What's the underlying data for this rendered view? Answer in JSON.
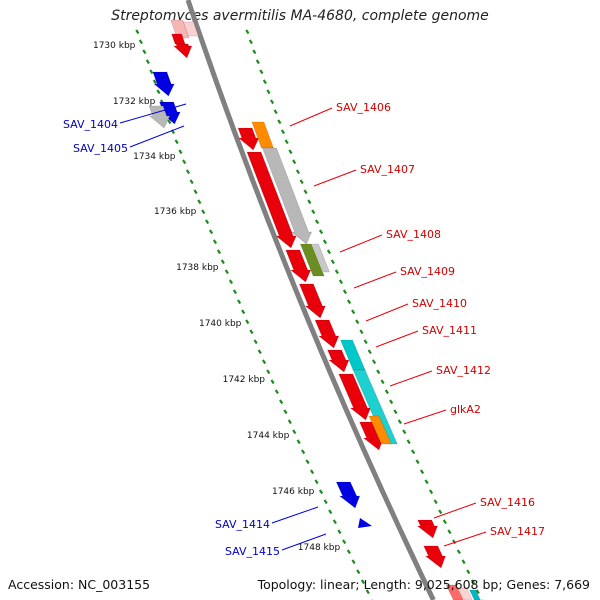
{
  "title": "Streptomyces avermitilis MA-4680, complete genome",
  "footer": {
    "accession": "Accession: NC_003155",
    "summary": "Topology: linear; Length: 9,025,608 bp; Genes: 7,669"
  },
  "colors": {
    "forward": "#e8000b",
    "reverse": "#0000e0",
    "grey": "#b8b8b8",
    "orange": "#ff8c00",
    "olive": "#6b8e23",
    "cyan": "#00c8c8",
    "dots": "#1f8a1f",
    "backbone": "#808080"
  },
  "ticks": [
    {
      "label": "1730 kbp",
      "kbp": 1730
    },
    {
      "label": "1732 kbp",
      "kbp": 1732
    },
    {
      "label": "1734 kbp",
      "kbp": 1734
    },
    {
      "label": "1736 kbp",
      "kbp": 1736
    },
    {
      "label": "1738 kbp",
      "kbp": 1738
    },
    {
      "label": "1740 kbp",
      "kbp": 1740
    },
    {
      "label": "1742 kbp",
      "kbp": 1742
    },
    {
      "label": "1744 kbp",
      "kbp": 1744
    },
    {
      "label": "1746 kbp",
      "kbp": 1746
    },
    {
      "label": "1748 kbp",
      "kbp": 1748
    }
  ],
  "genes_forward": [
    {
      "label": "SAV_1406",
      "color": "red"
    },
    {
      "label": "SAV_1407",
      "color": "red"
    },
    {
      "label": "SAV_1408",
      "color": "red"
    },
    {
      "label": "SAV_1409",
      "color": "red"
    },
    {
      "label": "SAV_1410",
      "color": "red"
    },
    {
      "label": "SAV_1411",
      "color": "red"
    },
    {
      "label": "SAV_1412",
      "color": "red"
    },
    {
      "label": "glkA2",
      "color": "red"
    },
    {
      "label": "SAV_1416",
      "color": "red"
    },
    {
      "label": "SAV_1417",
      "color": "red"
    }
  ],
  "genes_reverse": [
    {
      "label": "SAV_1404",
      "color": "blue"
    },
    {
      "label": "SAV_1405",
      "color": "blue"
    },
    {
      "label": "SAV_1414",
      "color": "blue"
    },
    {
      "label": "SAV_1415",
      "color": "blue"
    }
  ]
}
